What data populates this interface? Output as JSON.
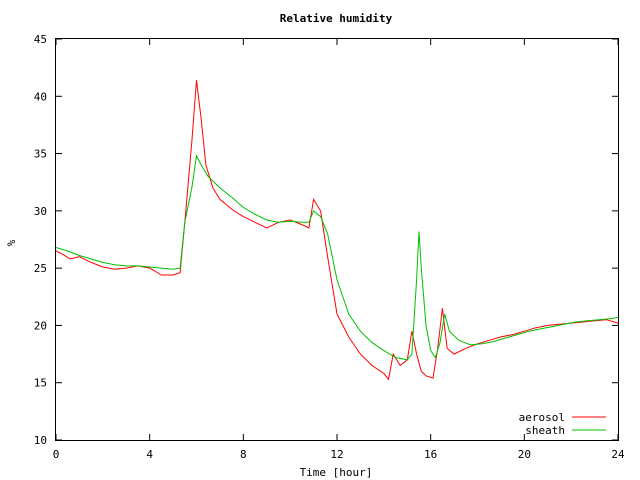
{
  "chart_data": {
    "type": "line",
    "title": "Relative humidity",
    "xlabel": "Time [hour]",
    "ylabel": "%",
    "xlim": [
      0,
      24
    ],
    "ylim": [
      10,
      45
    ],
    "xticks": [
      0,
      4,
      8,
      12,
      16,
      20,
      24
    ],
    "yticks": [
      10,
      15,
      20,
      25,
      30,
      35,
      40,
      45
    ],
    "grid": false,
    "legend_position": "bottom-right",
    "series": [
      {
        "name": "aerosol",
        "color": "#ff0000",
        "x": [
          0,
          0.3,
          0.6,
          1,
          1.5,
          2,
          2.5,
          3,
          3.5,
          4,
          4.5,
          5,
          5.3,
          5.5,
          5.8,
          6.0,
          6.2,
          6.4,
          6.7,
          7.0,
          7.3,
          7.6,
          8,
          8.5,
          9,
          9.5,
          10,
          10.5,
          10.8,
          11.0,
          11.3,
          11.6,
          12,
          12.5,
          13,
          13.5,
          14,
          14.2,
          14.4,
          14.7,
          15,
          15.2,
          15.4,
          15.6,
          15.8,
          16.1,
          16.3,
          16.5,
          16.7,
          17,
          17.5,
          18,
          18.5,
          19,
          19.5,
          20,
          20.5,
          21,
          21.5,
          22,
          22.5,
          23,
          23.5,
          24
        ],
        "y": [
          26.5,
          26.2,
          25.8,
          26.0,
          25.5,
          25.1,
          24.9,
          25.0,
          25.2,
          25.0,
          24.4,
          24.4,
          24.6,
          29.0,
          36.0,
          41.4,
          38.0,
          34.0,
          32.0,
          31.0,
          30.5,
          30.0,
          29.5,
          29.0,
          28.5,
          29.0,
          29.2,
          28.8,
          28.5,
          31.0,
          30.0,
          26.0,
          21.0,
          19.0,
          17.5,
          16.5,
          15.8,
          15.3,
          17.5,
          16.5,
          17.0,
          19.5,
          17.5,
          16.0,
          15.6,
          15.4,
          18.0,
          21.5,
          18.0,
          17.5,
          18.0,
          18.4,
          18.7,
          19.0,
          19.2,
          19.5,
          19.8,
          20.0,
          20.1,
          20.2,
          20.3,
          20.4,
          20.5,
          20.2
        ]
      },
      {
        "name": "sheath",
        "color": "#00c000",
        "x": [
          0,
          0.5,
          1,
          1.5,
          2,
          2.5,
          3,
          3.5,
          4,
          4.5,
          5,
          5.3,
          5.5,
          5.8,
          6.0,
          6.2,
          6.5,
          7.0,
          7.5,
          8,
          8.5,
          9,
          9.5,
          10,
          10.5,
          10.8,
          11.0,
          11.3,
          11.6,
          12,
          12.5,
          13,
          13.5,
          14,
          14.5,
          15,
          15.2,
          15.4,
          15.5,
          15.6,
          15.8,
          16.0,
          16.2,
          16.4,
          16.6,
          16.8,
          17.2,
          17.7,
          18.2,
          18.7,
          19.2,
          19.7,
          20.2,
          20.7,
          21.2,
          21.7,
          22.2,
          22.7,
          23.2,
          23.7,
          24
        ],
        "y": [
          26.8,
          26.5,
          26.1,
          25.8,
          25.5,
          25.3,
          25.2,
          25.2,
          25.1,
          25.0,
          24.9,
          25.0,
          29.0,
          32.0,
          34.8,
          34.0,
          33.0,
          32.0,
          31.2,
          30.3,
          29.7,
          29.2,
          29.0,
          29.1,
          29.0,
          29.0,
          30.0,
          29.5,
          28.0,
          24.0,
          21.0,
          19.5,
          18.5,
          17.8,
          17.2,
          17.0,
          17.5,
          24.0,
          28.2,
          25.0,
          20.0,
          17.8,
          17.2,
          18.5,
          21.0,
          19.5,
          18.7,
          18.3,
          18.4,
          18.6,
          18.9,
          19.2,
          19.5,
          19.7,
          19.9,
          20.1,
          20.3,
          20.4,
          20.5,
          20.6,
          20.7
        ]
      }
    ]
  }
}
